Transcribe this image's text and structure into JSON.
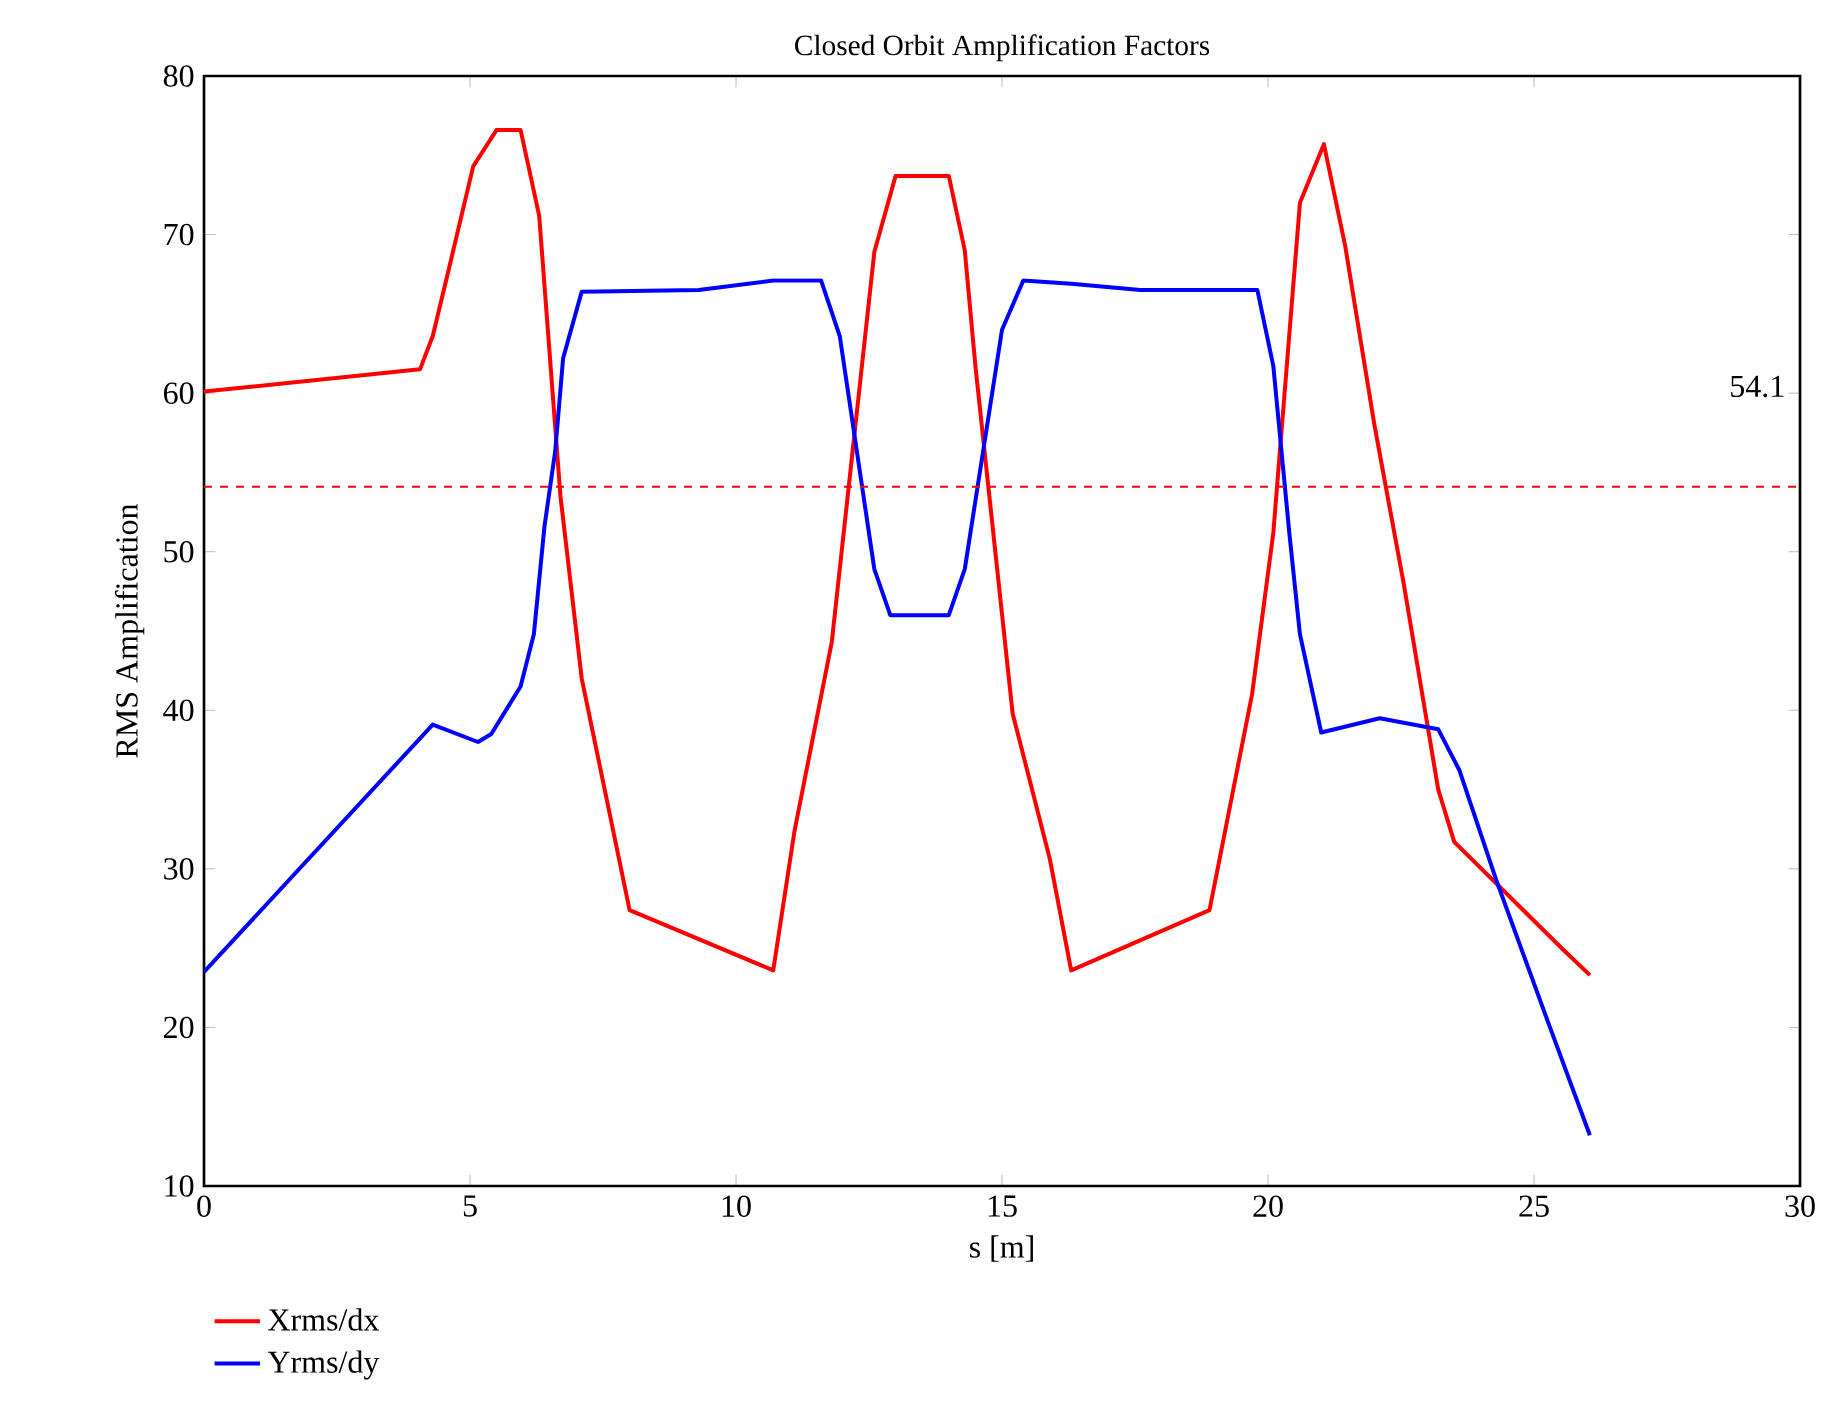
{
  "chart_data": {
    "type": "line",
    "title": "Closed Orbit Amplification Factors",
    "xlabel": "s [m]",
    "ylabel": "RMS Amplification",
    "xlim": [
      0,
      30
    ],
    "ylim": [
      10,
      80
    ],
    "xticks": [
      0,
      5,
      10,
      15,
      20,
      25,
      30
    ],
    "yticks": [
      10,
      20,
      30,
      40,
      50,
      60,
      70,
      80
    ],
    "grid": false,
    "legend": "bottom left",
    "line_style": "solid",
    "marker": "none",
    "ref_lines": [
      {
        "axis": "y",
        "value": 54.1,
        "label": "54.1",
        "color": "#ff0000",
        "line_style": "dashed"
      }
    ],
    "series": [
      {
        "name": "Xrms/dx",
        "color": "#ff0000",
        "x": [
          0,
          4.06,
          4.3,
          4.6,
          5.06,
          5.5,
          5.95,
          6.3,
          6.7,
          7.1,
          8.0,
          10.7,
          11.1,
          11.8,
          12.6,
          13.0,
          14.0,
          14.3,
          14.5,
          15.2,
          15.9,
          16.3,
          18.9,
          19.7,
          20.1,
          20.6,
          21.05,
          21.45,
          22.0,
          22.55,
          23.2,
          23.5,
          25.55,
          26.05
        ],
        "values": [
          60.1,
          61.5,
          63.6,
          67.8,
          74.3,
          76.6,
          76.6,
          71.2,
          53.5,
          42,
          27.4,
          23.6,
          32.4,
          44.3,
          68.9,
          73.7,
          73.7,
          69,
          61.7,
          39.8,
          30.6,
          23.6,
          27.4,
          41,
          51.2,
          72,
          75.7,
          69.3,
          58,
          48,
          35,
          31.7,
          24.9,
          23.3
        ]
      },
      {
        "name": "Yrms/dy",
        "color": "#0000ff",
        "x": [
          0,
          4.3,
          5.15,
          5.4,
          5.95,
          6.2,
          6.4,
          6.6,
          6.75,
          7.1,
          9.3,
          10.7,
          11.6,
          11.95,
          12.6,
          12.9,
          14.0,
          14.3,
          15.0,
          15.4,
          16.3,
          17.6,
          19.8,
          20.1,
          20.4,
          20.6,
          21.0,
          22.1,
          23.2,
          23.6,
          24.3,
          25.3,
          26.05
        ],
        "values": [
          23.5,
          39.1,
          38,
          38.5,
          41.5,
          44.8,
          51.6,
          56.3,
          62.2,
          66.4,
          66.5,
          67.1,
          67.1,
          63.6,
          48.9,
          46,
          46,
          48.9,
          64,
          67.1,
          66.9,
          66.5,
          66.5,
          61.7,
          51.2,
          44.8,
          38.6,
          39.5,
          38.8,
          36.2,
          29.2,
          20,
          13.2
        ]
      }
    ]
  }
}
